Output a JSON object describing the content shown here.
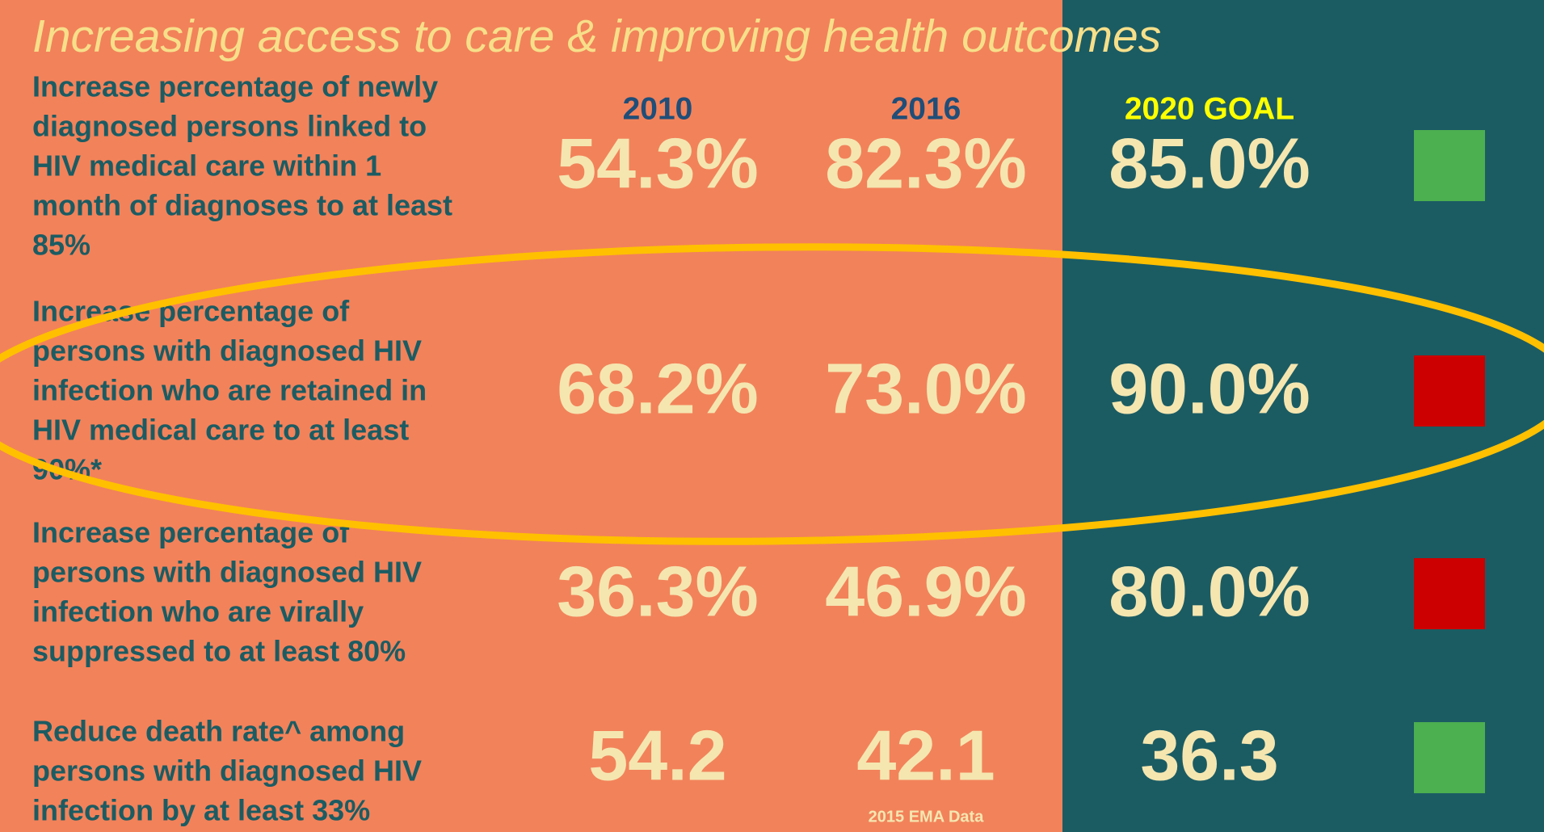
{
  "title": "Increasing access to care & improving health outcomes",
  "headers": [
    "2010",
    "2016",
    "2020 GOAL"
  ],
  "rows": [
    {
      "objective_lines": [
        "Increase percentage of newly",
        "diagnosed persons linked to",
        "HIV medical care within 1",
        "month of diagnoses to at least",
        "85%"
      ],
      "values": [
        "54.3%",
        "82.3%",
        "85.0%"
      ],
      "status_color": "#4caf50"
    },
    {
      "objective_lines": [
        "Increase percentage of",
        "persons with diagnosed HIV",
        "infection who are retained in",
        "HIV medical care to at least",
        "90%*"
      ],
      "values": [
        "68.2%",
        "73.0%",
        "90.0%"
      ],
      "status_color": "#cc0000"
    },
    {
      "objective_lines": [
        "Increase percentage of",
        "persons with diagnosed HIV",
        "infection who are virally",
        "suppressed to at least 80%"
      ],
      "values": [
        "36.3%",
        "46.9%",
        "80.0%"
      ],
      "status_color": "#cc0000"
    },
    {
      "objective_lines": [
        "Reduce death rate^ among",
        "persons with diagnosed HIV",
        "infection by at least 33%"
      ],
      "values": [
        "54.2",
        "42.1",
        "36.3"
      ],
      "status_color": "#4caf50"
    }
  ],
  "footnote": "2015 EMA Data"
}
